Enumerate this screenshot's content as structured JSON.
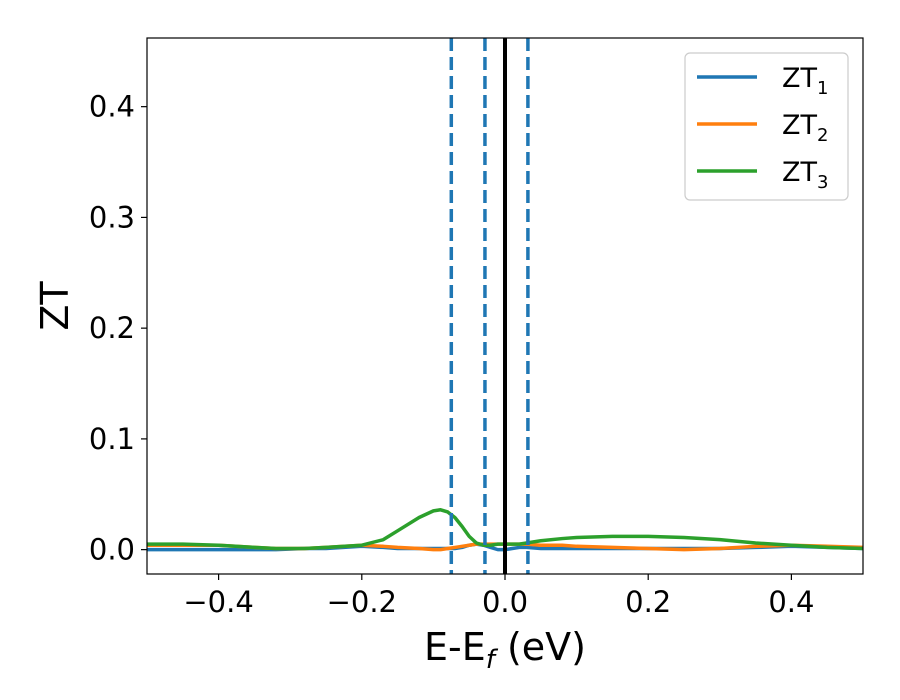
{
  "chart_data": {
    "type": "line",
    "title": "",
    "xlabel_main": "E-E",
    "xlabel_sub": "f",
    "xlabel_unit": " (eV)",
    "ylabel": "ZT",
    "xlim": [
      -0.5,
      0.5
    ],
    "ylim": [
      -0.022,
      0.462
    ],
    "x_ticks": [
      -0.4,
      -0.2,
      0.0,
      0.2,
      0.4
    ],
    "x_tick_labels": [
      "−0.4",
      "−0.2",
      "0.0",
      "0.2",
      "0.4"
    ],
    "y_ticks": [
      0.0,
      0.1,
      0.2,
      0.3,
      0.4
    ],
    "y_tick_labels": [
      "0.0",
      "0.1",
      "0.2",
      "0.3",
      "0.4"
    ],
    "grid": false,
    "legend_position": "top-right",
    "x": [
      -0.5,
      -0.45,
      -0.4,
      -0.35,
      -0.32,
      -0.28,
      -0.25,
      -0.2,
      -0.17,
      -0.15,
      -0.12,
      -0.1,
      -0.09,
      -0.08,
      -0.07,
      -0.06,
      -0.05,
      -0.04,
      -0.03,
      -0.02,
      -0.01,
      0.0,
      0.01,
      0.02,
      0.03,
      0.05,
      0.08,
      0.1,
      0.15,
      0.2,
      0.25,
      0.3,
      0.35,
      0.4,
      0.45,
      0.5
    ],
    "series": [
      {
        "name": "ZT",
        "name_sub": "1",
        "color": "#1f77b4",
        "values": [
          0.0,
          0.0,
          0.0,
          0.0,
          0.0,
          0.001,
          0.001,
          0.003,
          0.002,
          0.001,
          0.001,
          0.001,
          0.001,
          0.001,
          0.001,
          0.002,
          0.004,
          0.005,
          0.004,
          0.002,
          0.0,
          0.0,
          0.001,
          0.002,
          0.002,
          0.001,
          0.001,
          0.001,
          0.001,
          0.001,
          0.001,
          0.001,
          0.002,
          0.003,
          0.002,
          0.001
        ]
      },
      {
        "name": "ZT",
        "name_sub": "2",
        "color": "#ff7f0e",
        "values": [
          0.004,
          0.004,
          0.004,
          0.002,
          0.001,
          0.001,
          0.002,
          0.004,
          0.003,
          0.002,
          0.001,
          0.0,
          0.0,
          0.001,
          0.002,
          0.003,
          0.004,
          0.005,
          0.005,
          0.005,
          0.005,
          0.005,
          0.005,
          0.005,
          0.005,
          0.004,
          0.004,
          0.003,
          0.002,
          0.001,
          0.0,
          0.001,
          0.003,
          0.004,
          0.003,
          0.002
        ]
      },
      {
        "name": "ZT",
        "name_sub": "3",
        "color": "#2ca02c",
        "values": [
          0.005,
          0.005,
          0.004,
          0.002,
          0.001,
          0.001,
          0.002,
          0.004,
          0.009,
          0.017,
          0.029,
          0.035,
          0.036,
          0.034,
          0.029,
          0.021,
          0.012,
          0.006,
          0.004,
          0.004,
          0.005,
          0.005,
          0.005,
          0.005,
          0.006,
          0.008,
          0.01,
          0.011,
          0.012,
          0.012,
          0.011,
          0.009,
          0.006,
          0.004,
          0.002,
          0.001
        ]
      }
    ],
    "vlines": [
      {
        "x": 0.0,
        "color": "#000000",
        "style": "solid"
      },
      {
        "x": -0.075,
        "color": "#1f77b4",
        "style": "dashed"
      },
      {
        "x": -0.028,
        "color": "#1f77b4",
        "style": "dashed"
      },
      {
        "x": 0.032,
        "color": "#1f77b4",
        "style": "dashed"
      }
    ]
  }
}
